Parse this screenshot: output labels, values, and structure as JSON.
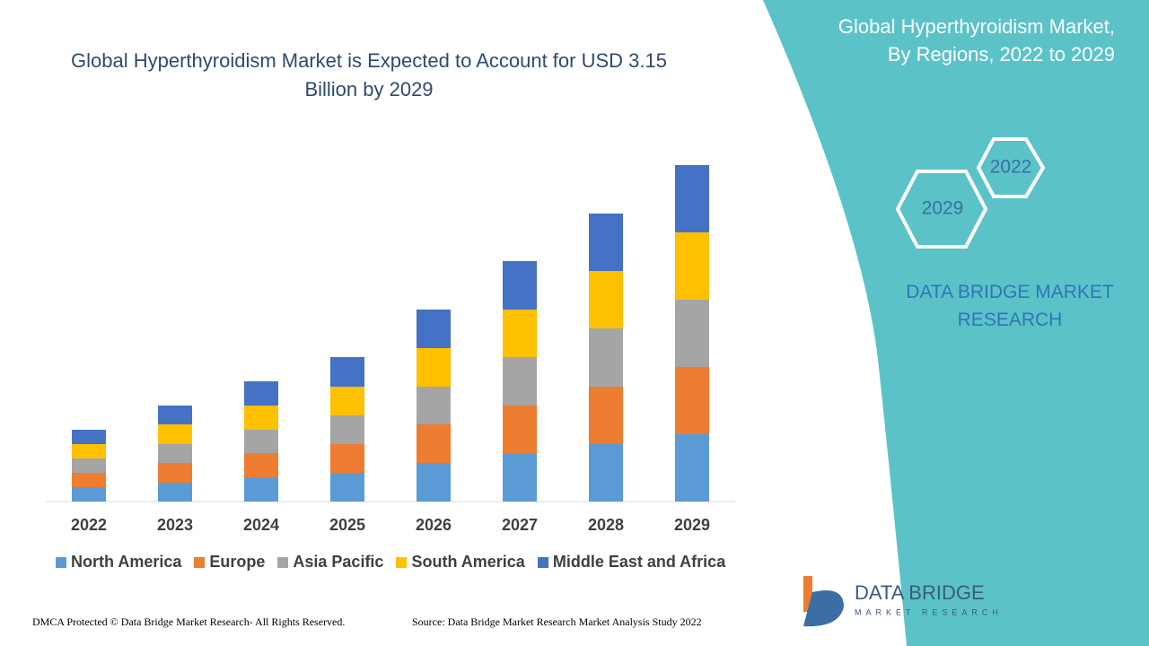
{
  "chart_data": {
    "type": "bar",
    "stacked": true,
    "title": "Global Hyperthyroidism Market is Expected to Account for USD 3.15 Billion by 2029",
    "categories": [
      "2022",
      "2023",
      "2024",
      "2025",
      "2026",
      "2027",
      "2028",
      "2029"
    ],
    "series": [
      {
        "name": "North America",
        "color": "#5b9bd5",
        "values": [
          16,
          21,
          27,
          32,
          43,
          54,
          64,
          75
        ]
      },
      {
        "name": "Europe",
        "color": "#ed7d31",
        "values": [
          16,
          22,
          27,
          32,
          43,
          53,
          64,
          75
        ]
      },
      {
        "name": "Asia Pacific",
        "color": "#a5a5a5",
        "values": [
          16,
          21,
          26,
          32,
          42,
          54,
          65,
          75
        ]
      },
      {
        "name": "South America",
        "color": "#ffc000",
        "values": [
          16,
          22,
          27,
          32,
          43,
          53,
          64,
          75
        ]
      },
      {
        "name": "Middle East and Africa",
        "color": "#4472c4",
        "values": [
          16,
          21,
          27,
          33,
          43,
          54,
          64,
          75
        ]
      }
    ],
    "ylim": [
      0,
      400
    ],
    "legend": "bottom"
  },
  "sidebar": {
    "title": "Global Hyperthyroidism Market, By Regions, 2022 to 2029",
    "hexagons": [
      "2022",
      "2029"
    ],
    "brand": "DATA BRIDGE MARKET RESEARCH"
  },
  "logo": {
    "name": "DATA BRIDGE",
    "tagline": "MARKET RESEARCH"
  },
  "footer": {
    "copyright": "DMCA Protected © Data Bridge Market Research- All Rights Reserved.",
    "source": "Source: Data Bridge Market Research Market Analysis Study 2022"
  }
}
